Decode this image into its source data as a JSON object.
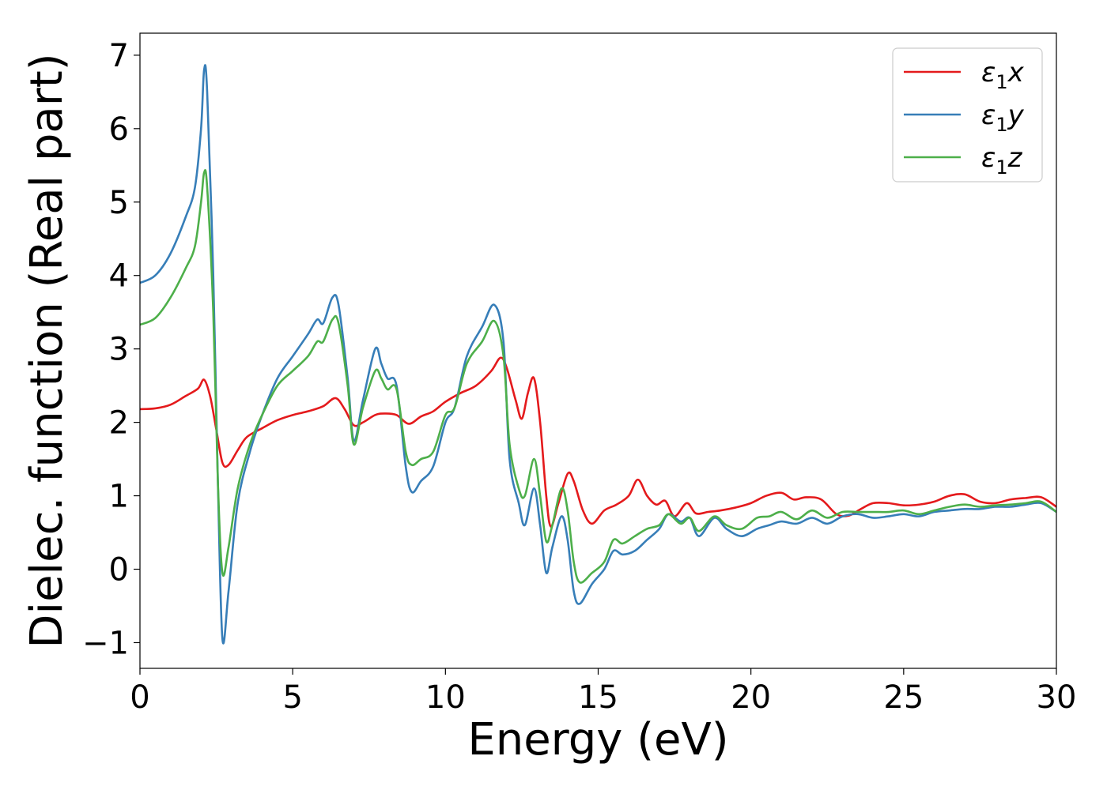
{
  "chart_data": {
    "type": "line",
    "xlabel": "Energy (eV)",
    "ylabel": "Dielec. function (Real part)",
    "xlim": [
      0,
      30
    ],
    "ylim": [
      -1.35,
      7.3
    ],
    "xticks": [
      0,
      5,
      10,
      15,
      20,
      25,
      30
    ],
    "yticks": [
      -1,
      0,
      1,
      2,
      3,
      4,
      5,
      6,
      7
    ],
    "xtick_labels": [
      "0",
      "5",
      "10",
      "15",
      "20",
      "25",
      "30"
    ],
    "ytick_labels": [
      "−1",
      "0",
      "1",
      "2",
      "3",
      "4",
      "5",
      "6",
      "7"
    ],
    "grid": false,
    "legend_position": "top-right",
    "series": [
      {
        "name": "ε1x",
        "label_base": "ε",
        "label_sub": "1",
        "label_suffix": "x",
        "color": "#e41a1c",
        "points": [
          [
            0,
            2.18
          ],
          [
            0.5,
            2.19
          ],
          [
            1.0,
            2.24
          ],
          [
            1.5,
            2.36
          ],
          [
            1.9,
            2.46
          ],
          [
            2.1,
            2.58
          ],
          [
            2.3,
            2.35
          ],
          [
            2.5,
            1.9
          ],
          [
            2.7,
            1.45
          ],
          [
            2.9,
            1.42
          ],
          [
            3.2,
            1.62
          ],
          [
            3.5,
            1.8
          ],
          [
            4.0,
            1.92
          ],
          [
            4.5,
            2.03
          ],
          [
            5.0,
            2.1
          ],
          [
            5.5,
            2.15
          ],
          [
            6.0,
            2.22
          ],
          [
            6.4,
            2.33
          ],
          [
            6.7,
            2.18
          ],
          [
            7.0,
            1.96
          ],
          [
            7.3,
            2.0
          ],
          [
            7.7,
            2.1
          ],
          [
            8.0,
            2.12
          ],
          [
            8.4,
            2.1
          ],
          [
            8.8,
            1.98
          ],
          [
            9.2,
            2.08
          ],
          [
            9.6,
            2.15
          ],
          [
            10.0,
            2.28
          ],
          [
            10.5,
            2.4
          ],
          [
            11.0,
            2.5
          ],
          [
            11.5,
            2.7
          ],
          [
            11.8,
            2.88
          ],
          [
            12.0,
            2.75
          ],
          [
            12.3,
            2.3
          ],
          [
            12.5,
            2.05
          ],
          [
            12.7,
            2.4
          ],
          [
            12.9,
            2.6
          ],
          [
            13.1,
            2.0
          ],
          [
            13.3,
            1.0
          ],
          [
            13.45,
            0.58
          ],
          [
            13.7,
            0.9
          ],
          [
            14.0,
            1.3
          ],
          [
            14.2,
            1.2
          ],
          [
            14.5,
            0.8
          ],
          [
            14.8,
            0.62
          ],
          [
            15.2,
            0.8
          ],
          [
            15.6,
            0.88
          ],
          [
            16.0,
            1.0
          ],
          [
            16.3,
            1.22
          ],
          [
            16.6,
            1.0
          ],
          [
            16.9,
            0.88
          ],
          [
            17.2,
            0.93
          ],
          [
            17.5,
            0.72
          ],
          [
            17.9,
            0.9
          ],
          [
            18.2,
            0.76
          ],
          [
            18.6,
            0.78
          ],
          [
            19.0,
            0.8
          ],
          [
            19.5,
            0.84
          ],
          [
            20.0,
            0.9
          ],
          [
            20.5,
            1.0
          ],
          [
            21.0,
            1.04
          ],
          [
            21.4,
            0.95
          ],
          [
            21.8,
            0.98
          ],
          [
            22.3,
            0.95
          ],
          [
            22.8,
            0.75
          ],
          [
            23.2,
            0.73
          ],
          [
            23.6,
            0.82
          ],
          [
            24.0,
            0.9
          ],
          [
            24.5,
            0.9
          ],
          [
            25.0,
            0.87
          ],
          [
            25.5,
            0.88
          ],
          [
            26.0,
            0.92
          ],
          [
            26.5,
            1.0
          ],
          [
            27.0,
            1.02
          ],
          [
            27.5,
            0.92
          ],
          [
            28.0,
            0.9
          ],
          [
            28.5,
            0.95
          ],
          [
            29.0,
            0.97
          ],
          [
            29.5,
            0.98
          ],
          [
            30.0,
            0.85
          ]
        ]
      },
      {
        "name": "ε1y",
        "label_base": "ε",
        "label_sub": "1",
        "label_suffix": "y",
        "color": "#377eb8",
        "points": [
          [
            0,
            3.9
          ],
          [
            0.5,
            4.0
          ],
          [
            1.0,
            4.3
          ],
          [
            1.5,
            4.8
          ],
          [
            1.8,
            5.2
          ],
          [
            2.0,
            6.0
          ],
          [
            2.1,
            6.8
          ],
          [
            2.2,
            6.5
          ],
          [
            2.4,
            4.0
          ],
          [
            2.55,
            1.2
          ],
          [
            2.7,
            -0.95
          ],
          [
            2.9,
            -0.3
          ],
          [
            3.2,
            0.9
          ],
          [
            3.6,
            1.6
          ],
          [
            4.0,
            2.1
          ],
          [
            4.5,
            2.6
          ],
          [
            5.0,
            2.9
          ],
          [
            5.5,
            3.2
          ],
          [
            5.8,
            3.4
          ],
          [
            6.0,
            3.35
          ],
          [
            6.3,
            3.7
          ],
          [
            6.5,
            3.6
          ],
          [
            6.8,
            2.6
          ],
          [
            7.0,
            1.75
          ],
          [
            7.3,
            2.3
          ],
          [
            7.7,
            3.0
          ],
          [
            7.9,
            2.8
          ],
          [
            8.1,
            2.6
          ],
          [
            8.4,
            2.5
          ],
          [
            8.7,
            1.4
          ],
          [
            8.9,
            1.05
          ],
          [
            9.2,
            1.2
          ],
          [
            9.6,
            1.4
          ],
          [
            10.0,
            2.0
          ],
          [
            10.3,
            2.2
          ],
          [
            10.7,
            2.9
          ],
          [
            11.2,
            3.3
          ],
          [
            11.6,
            3.6
          ],
          [
            11.9,
            3.1
          ],
          [
            12.1,
            1.5
          ],
          [
            12.4,
            0.9
          ],
          [
            12.6,
            0.6
          ],
          [
            12.9,
            1.1
          ],
          [
            13.1,
            0.6
          ],
          [
            13.3,
            -0.05
          ],
          [
            13.5,
            0.3
          ],
          [
            13.8,
            0.72
          ],
          [
            14.0,
            0.4
          ],
          [
            14.2,
            -0.3
          ],
          [
            14.4,
            -0.47
          ],
          [
            14.8,
            -0.2
          ],
          [
            15.2,
            0.0
          ],
          [
            15.5,
            0.25
          ],
          [
            15.8,
            0.2
          ],
          [
            16.2,
            0.25
          ],
          [
            16.6,
            0.4
          ],
          [
            17.0,
            0.55
          ],
          [
            17.3,
            0.75
          ],
          [
            17.7,
            0.65
          ],
          [
            18.0,
            0.7
          ],
          [
            18.3,
            0.45
          ],
          [
            18.8,
            0.7
          ],
          [
            19.2,
            0.55
          ],
          [
            19.7,
            0.45
          ],
          [
            20.2,
            0.55
          ],
          [
            20.6,
            0.6
          ],
          [
            21.0,
            0.65
          ],
          [
            21.5,
            0.62
          ],
          [
            22.0,
            0.7
          ],
          [
            22.5,
            0.62
          ],
          [
            23.0,
            0.72
          ],
          [
            23.5,
            0.75
          ],
          [
            24.0,
            0.7
          ],
          [
            24.5,
            0.72
          ],
          [
            25.0,
            0.75
          ],
          [
            25.5,
            0.72
          ],
          [
            26.0,
            0.78
          ],
          [
            26.5,
            0.8
          ],
          [
            27.0,
            0.82
          ],
          [
            27.5,
            0.82
          ],
          [
            28.0,
            0.85
          ],
          [
            28.5,
            0.85
          ],
          [
            29.0,
            0.88
          ],
          [
            29.5,
            0.9
          ],
          [
            30.0,
            0.78
          ]
        ]
      },
      {
        "name": "ε1z",
        "label_base": "ε",
        "label_sub": "1",
        "label_suffix": "z",
        "color": "#4daf4a",
        "points": [
          [
            0,
            3.33
          ],
          [
            0.5,
            3.42
          ],
          [
            1.0,
            3.7
          ],
          [
            1.5,
            4.1
          ],
          [
            1.8,
            4.4
          ],
          [
            2.0,
            5.0
          ],
          [
            2.1,
            5.4
          ],
          [
            2.2,
            5.2
          ],
          [
            2.4,
            3.5
          ],
          [
            2.55,
            1.2
          ],
          [
            2.7,
            -0.05
          ],
          [
            2.9,
            0.3
          ],
          [
            3.2,
            1.1
          ],
          [
            3.6,
            1.7
          ],
          [
            4.0,
            2.1
          ],
          [
            4.5,
            2.5
          ],
          [
            5.0,
            2.7
          ],
          [
            5.5,
            2.9
          ],
          [
            5.8,
            3.1
          ],
          [
            6.0,
            3.1
          ],
          [
            6.3,
            3.4
          ],
          [
            6.5,
            3.35
          ],
          [
            6.8,
            2.5
          ],
          [
            7.0,
            1.7
          ],
          [
            7.3,
            2.2
          ],
          [
            7.7,
            2.7
          ],
          [
            7.9,
            2.6
          ],
          [
            8.1,
            2.45
          ],
          [
            8.4,
            2.45
          ],
          [
            8.7,
            1.6
          ],
          [
            8.9,
            1.42
          ],
          [
            9.2,
            1.5
          ],
          [
            9.6,
            1.6
          ],
          [
            10.0,
            2.1
          ],
          [
            10.3,
            2.2
          ],
          [
            10.7,
            2.8
          ],
          [
            11.2,
            3.1
          ],
          [
            11.6,
            3.38
          ],
          [
            11.9,
            2.9
          ],
          [
            12.1,
            1.7
          ],
          [
            12.4,
            1.1
          ],
          [
            12.6,
            1.0
          ],
          [
            12.9,
            1.5
          ],
          [
            13.1,
            1.0
          ],
          [
            13.3,
            0.38
          ],
          [
            13.5,
            0.6
          ],
          [
            13.8,
            1.1
          ],
          [
            14.0,
            0.8
          ],
          [
            14.2,
            0.1
          ],
          [
            14.4,
            -0.18
          ],
          [
            14.8,
            -0.05
          ],
          [
            15.2,
            0.1
          ],
          [
            15.5,
            0.4
          ],
          [
            15.8,
            0.35
          ],
          [
            16.2,
            0.45
          ],
          [
            16.6,
            0.55
          ],
          [
            17.0,
            0.6
          ],
          [
            17.3,
            0.75
          ],
          [
            17.7,
            0.62
          ],
          [
            18.0,
            0.7
          ],
          [
            18.3,
            0.52
          ],
          [
            18.8,
            0.72
          ],
          [
            19.2,
            0.6
          ],
          [
            19.7,
            0.55
          ],
          [
            20.2,
            0.7
          ],
          [
            20.6,
            0.72
          ],
          [
            21.0,
            0.78
          ],
          [
            21.5,
            0.68
          ],
          [
            22.0,
            0.8
          ],
          [
            22.5,
            0.7
          ],
          [
            23.0,
            0.78
          ],
          [
            23.5,
            0.78
          ],
          [
            24.0,
            0.78
          ],
          [
            24.5,
            0.78
          ],
          [
            25.0,
            0.8
          ],
          [
            25.5,
            0.75
          ],
          [
            26.0,
            0.8
          ],
          [
            26.5,
            0.85
          ],
          [
            27.0,
            0.88
          ],
          [
            27.5,
            0.85
          ],
          [
            28.0,
            0.87
          ],
          [
            28.5,
            0.88
          ],
          [
            29.0,
            0.9
          ],
          [
            29.5,
            0.92
          ],
          [
            30.0,
            0.78
          ]
        ]
      }
    ]
  }
}
